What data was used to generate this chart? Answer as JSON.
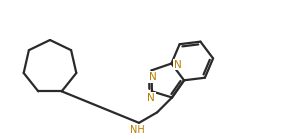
{
  "bg_color": "#ffffff",
  "bond_color": "#2a2a2a",
  "bond_width": 1.6,
  "N_color": "#b87c00",
  "figsize": [
    3.0,
    1.39
  ],
  "dpi": 100,
  "xlim": [
    0.0,
    3.0
  ],
  "ylim": [
    0.0,
    1.39
  ]
}
